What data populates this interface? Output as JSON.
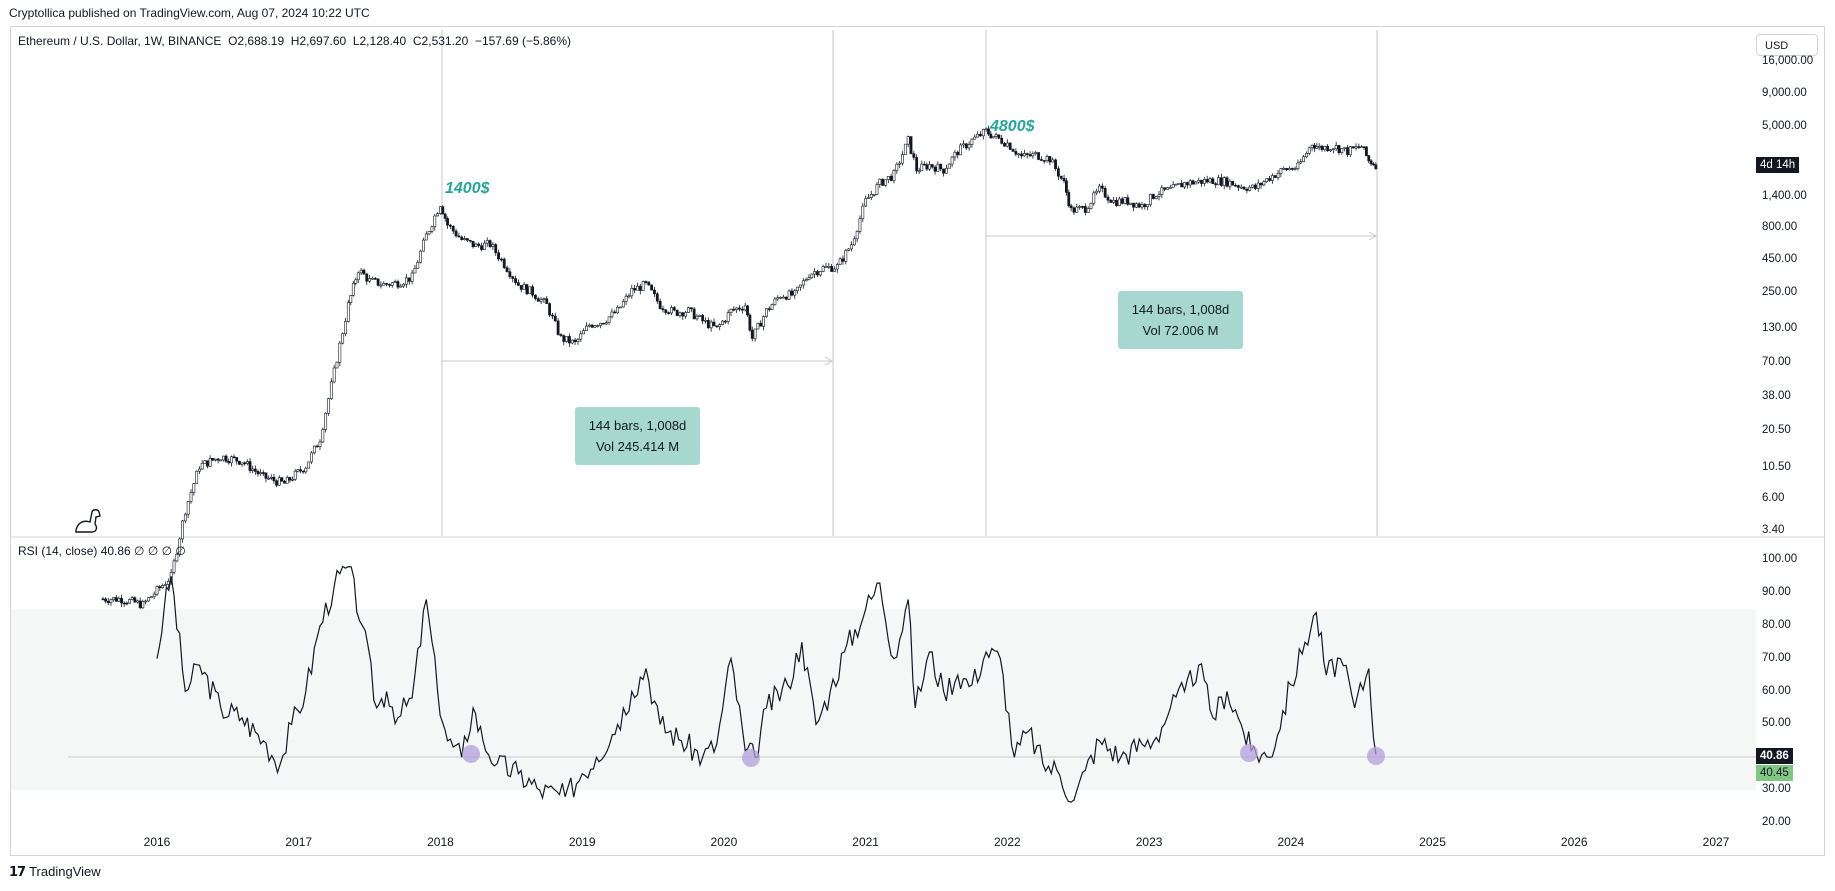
{
  "header": {
    "published": "Cryptollica published on TradingView.com, Aug 07, 2024 10:22 UTC"
  },
  "legend": {
    "symbol": "Ethereum / U.S. Dollar, 1W, BINANCE",
    "ohlc": "O2,688.19  H2,697.60  L2,128.40  C2,531.20  −157.69 (−5.86%)"
  },
  "rsi_legend": "RSI (14, close)  40.86  ∅ ∅ ∅ ∅",
  "currency_button": "USD",
  "countdown_badge": "4d 14h",
  "rsi_badges": {
    "current": "40.86",
    "ma": "40.45"
  },
  "footer": {
    "brand": "TradingView",
    "logo_icon": "tradingview-logo-icon"
  },
  "annotations": {
    "peak1": "1400$",
    "peak2": "4800$",
    "range1": {
      "line1": "144 bars, 1,008d",
      "line2": "Vol 245.414 M"
    },
    "range2": {
      "line1": "144 bars, 1,008d",
      "line2": "Vol 72.006 M"
    }
  },
  "colors": {
    "peak_text": "#26a69a",
    "stat_box": "#a7d8cf",
    "rsi_band": "#f4f7f5",
    "rsi_marker": "#b39ddb",
    "badge_dark": "#131722",
    "badge_green": "#81c784"
  },
  "chart_data": [
    {
      "type": "candlestick",
      "scale": "log",
      "y_ticks": [
        "16,000.00",
        "9,000.00",
        "5,000.00",
        "1,400.00",
        "800.00",
        "450.00",
        "250.00",
        "130.00",
        "70.00",
        "38.00",
        "20.50",
        "10.50",
        "6.00",
        "3.40"
      ],
      "y_tick_values": [
        16000,
        9000,
        5000,
        1400,
        800,
        450,
        250,
        130,
        70,
        38,
        20.5,
        10.5,
        6,
        3.4
      ],
      "x_ticks": [
        "2016",
        "2017",
        "2018",
        "2019",
        "2020",
        "2021",
        "2022",
        "2023",
        "2024",
        "2025",
        "2026",
        "2027"
      ],
      "x_tick_values": [
        2016,
        2017,
        2018,
        2019,
        2020,
        2021,
        2022,
        2023,
        2024,
        2025,
        2026,
        2027
      ],
      "x": [
        2015.6,
        2015.75,
        2015.9,
        2016.1,
        2016.2,
        2016.3,
        2016.45,
        2016.6,
        2016.75,
        2016.9,
        2017.05,
        2017.15,
        2017.25,
        2017.35,
        2017.42,
        2017.5,
        2017.6,
        2017.7,
        2017.8,
        2017.9,
        2018.0,
        2018.05,
        2018.15,
        2018.25,
        2018.35,
        2018.45,
        2018.55,
        2018.65,
        2018.75,
        2018.85,
        2018.95,
        2019.05,
        2019.15,
        2019.25,
        2019.35,
        2019.45,
        2019.55,
        2019.65,
        2019.75,
        2019.85,
        2019.95,
        2020.05,
        2020.15,
        2020.2,
        2020.3,
        2020.4,
        2020.5,
        2020.6,
        2020.7,
        2020.8,
        2020.9,
        2021.0,
        2021.1,
        2021.2,
        2021.3,
        2021.36,
        2021.45,
        2021.55,
        2021.65,
        2021.75,
        2021.85,
        2021.9,
        2022.0,
        2022.1,
        2022.2,
        2022.3,
        2022.4,
        2022.45,
        2022.55,
        2022.65,
        2022.75,
        2022.85,
        2022.95,
        2023.05,
        2023.15,
        2023.25,
        2023.35,
        2023.45,
        2023.55,
        2023.65,
        2023.75,
        2023.85,
        2023.95,
        2024.05,
        2024.15,
        2024.2,
        2024.3,
        2024.4,
        2024.5,
        2024.55,
        2024.6
      ],
      "close": [
        1.0,
        1.0,
        0.9,
        1.5,
        5,
        11,
        13,
        12,
        9,
        8,
        11,
        18,
        60,
        200,
        380,
        310,
        290,
        300,
        330,
        700,
        1250,
        850,
        650,
        580,
        600,
        420,
        290,
        250,
        200,
        110,
        100,
        140,
        150,
        180,
        260,
        290,
        200,
        175,
        180,
        150,
        130,
        180,
        200,
        110,
        180,
        240,
        240,
        350,
        390,
        400,
        600,
        1300,
        1800,
        2100,
        3900,
        2300,
        2500,
        2300,
        3200,
        3900,
        4600,
        4200,
        3700,
        2900,
        3000,
        2800,
        1800,
        1100,
        1150,
        1600,
        1300,
        1300,
        1200,
        1500,
        1600,
        1800,
        1850,
        1900,
        1850,
        1700,
        1650,
        2000,
        2300,
        2400,
        3700,
        3400,
        3500,
        3200,
        3500,
        2700,
        2531
      ]
    },
    {
      "type": "line",
      "name": "RSI (14, close)",
      "y_ticks": [
        "100.00",
        "90.00",
        "80.00",
        "70.00",
        "60.00",
        "50.00",
        "40.00",
        "30.00",
        "20.00"
      ],
      "y_tick_values": [
        100,
        90,
        80,
        70,
        60,
        50,
        40,
        30,
        20
      ],
      "band": [
        30,
        85
      ],
      "x": [
        2016.0,
        2016.05,
        2016.1,
        2016.2,
        2016.3,
        2016.45,
        2016.6,
        2016.75,
        2016.87,
        2016.95,
        2017.05,
        2017.15,
        2017.25,
        2017.35,
        2017.45,
        2017.55,
        2017.62,
        2017.7,
        2017.8,
        2017.9,
        2017.98,
        2018.05,
        2018.15,
        2018.23,
        2018.3,
        2018.4,
        2018.55,
        2018.7,
        2018.88,
        2019.0,
        2019.1,
        2019.25,
        2019.35,
        2019.45,
        2019.55,
        2019.7,
        2019.85,
        2019.95,
        2020.05,
        2020.15,
        2020.22,
        2020.3,
        2020.45,
        2020.55,
        2020.65,
        2020.75,
        2020.85,
        2021.0,
        2021.1,
        2021.2,
        2021.3,
        2021.35,
        2021.45,
        2021.55,
        2021.65,
        2021.75,
        2021.85,
        2021.95,
        2022.05,
        2022.15,
        2022.25,
        2022.35,
        2022.47,
        2022.55,
        2022.65,
        2022.8,
        2022.95,
        2023.05,
        2023.15,
        2023.25,
        2023.35,
        2023.45,
        2023.55,
        2023.65,
        2023.72,
        2023.85,
        2024.0,
        2024.1,
        2024.18,
        2024.25,
        2024.35,
        2024.45,
        2024.55,
        2024.6
      ],
      "values": [
        70,
        85,
        95,
        60,
        68,
        55,
        52,
        45,
        38,
        50,
        60,
        80,
        92,
        98,
        80,
        55,
        60,
        52,
        58,
        88,
        60,
        45,
        40,
        55,
        45,
        38,
        35,
        30,
        28,
        35,
        40,
        50,
        60,
        67,
        50,
        45,
        40,
        44,
        70,
        42,
        40,
        55,
        62,
        75,
        50,
        60,
        72,
        85,
        93,
        70,
        88,
        55,
        72,
        60,
        65,
        62,
        72,
        70,
        40,
        48,
        38,
        36,
        27,
        36,
        45,
        40,
        44,
        46,
        55,
        60,
        68,
        52,
        60,
        50,
        42,
        40,
        62,
        75,
        84,
        65,
        70,
        55,
        67,
        40.86
      ]
    }
  ]
}
